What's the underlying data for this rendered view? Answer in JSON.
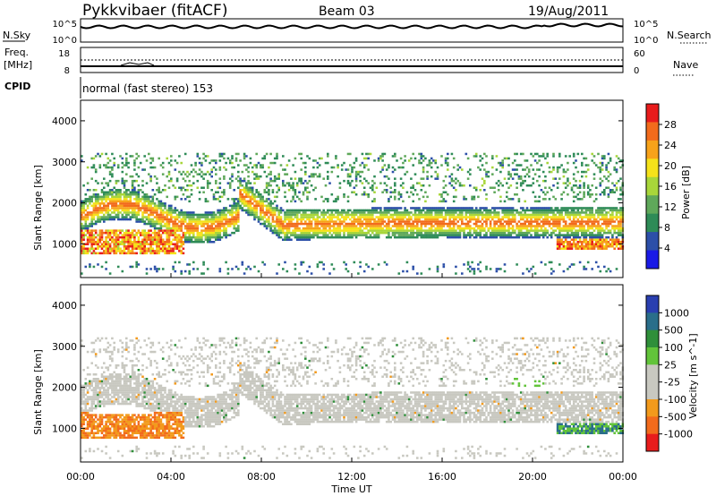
{
  "header": {
    "station": "Pykkvibaer (fitACF)",
    "beam": "Beam 03",
    "date": "19/Aug/2011"
  },
  "summary_panels": {
    "nsky_label": "N.Sky",
    "nsky_ticks": [
      "10^5",
      "10^0"
    ],
    "nsearch_label": "N.Search",
    "nsearch_ticks": [
      "10^5",
      "10^0"
    ],
    "freq_label": "Freq.",
    "freq_unit": "[MHz]",
    "freq_ticks": [
      "18",
      "8"
    ],
    "nave_label": "Nave",
    "nave_ticks": [
      "60",
      "0"
    ],
    "cpid_label": "CPID",
    "cpid_text": "normal (fast stereo) 153"
  },
  "colors": {
    "power_scale": [
      "#1a1ae6",
      "#2c4fa8",
      "#2e8b57",
      "#5fa85a",
      "#a8d63a",
      "#f5e21a",
      "#f7a21a",
      "#f26b1c",
      "#e81c1c"
    ],
    "velocity_scale": [
      "#2a3fb0",
      "#2a6e8a",
      "#2f8f3a",
      "#62c43a",
      "#c8c8c0",
      "#c8c8c0",
      "#f29a1c",
      "#f26b1c",
      "#e81c1c"
    ]
  },
  "chart_data": [
    {
      "type": "heatmap",
      "name": "power",
      "ylabel": "Slant Range [km]",
      "yticks": [
        "1000",
        "2000",
        "3000",
        "4000"
      ],
      "ylim": [
        180,
        4500
      ],
      "xlabel": "Time UT",
      "xticks": [
        "00:00",
        "04:00",
        "08:00",
        "12:00",
        "16:00",
        "20:00",
        "00:00"
      ],
      "xlim": [
        0,
        24
      ],
      "colorbar_label": "Power [dB]",
      "colorbar_ticks": [
        "4",
        "8",
        "12",
        "16",
        "20",
        "24",
        "28"
      ],
      "clim": [
        0,
        30
      ]
    },
    {
      "type": "heatmap",
      "name": "velocity",
      "ylabel": "Slant Range [km]",
      "yticks": [
        "1000",
        "2000",
        "3000",
        "4000"
      ],
      "ylim": [
        180,
        4500
      ],
      "xlabel": "Time UT",
      "xticks": [
        "00:00",
        "04:00",
        "08:00",
        "12:00",
        "16:00",
        "20:00",
        "00:00"
      ],
      "xlim": [
        0,
        24
      ],
      "colorbar_label": "Velocity [m s^-1]",
      "colorbar_ticks": [
        "1000",
        "500",
        "100",
        "25",
        "-25",
        "-100",
        "-500",
        "-1000"
      ]
    }
  ]
}
